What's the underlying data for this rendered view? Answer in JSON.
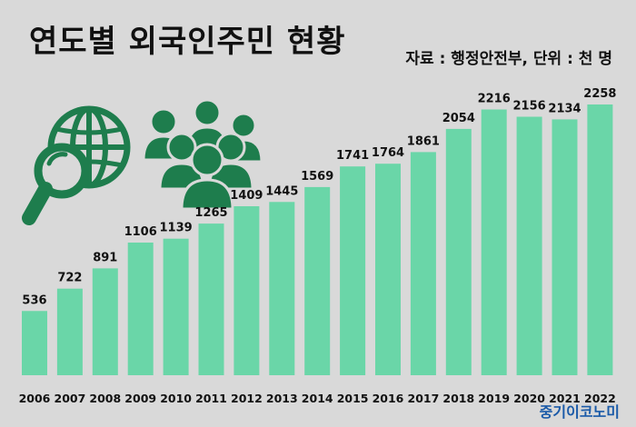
{
  "header": {
    "title": "연도별 외국인주민 현황",
    "source": "자료 : 행정안전부, 단위 : 천 명"
  },
  "brand": "중기이코노미",
  "colors": {
    "background": "#d9d9d9",
    "bar": "#6ad6a8",
    "icon": "#1e7d4d"
  },
  "illustration": {
    "icons": [
      "globe-magnifier-icon",
      "people-group-icon"
    ]
  },
  "chart_data": {
    "type": "bar",
    "categories": [
      "2006",
      "2007",
      "2008",
      "2009",
      "2010",
      "2011",
      "2012",
      "2013",
      "2014",
      "2015",
      "2016",
      "2017",
      "2018",
      "2019",
      "2020",
      "2021",
      "2022"
    ],
    "values": [
      536,
      722,
      891,
      1106,
      1139,
      1265,
      1409,
      1445,
      1569,
      1741,
      1764,
      1861,
      2054,
      2216,
      2156,
      2134,
      2258
    ],
    "title": "연도별 외국인주민 현황",
    "unit": "천 명",
    "ylim": [
      0,
      2258
    ],
    "grid": false,
    "legend": "none",
    "data_labels": true
  }
}
